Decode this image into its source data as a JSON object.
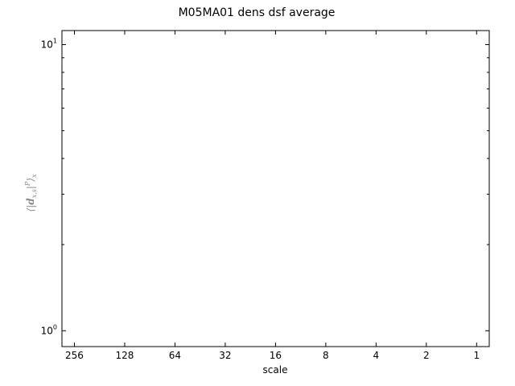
{
  "chart_data": {
    "type": "line",
    "title": "M05MA01 dens dsf average",
    "xlabel": "scale",
    "ylabel": "⟨|d_{x,s}|^P⟩_x",
    "x_scale": "log2",
    "x_reversed": true,
    "x_ticks": [
      256,
      128,
      64,
      32,
      16,
      8,
      4,
      2,
      1
    ],
    "x_tick_labels": [
      "256",
      "128",
      "64",
      "32",
      "16",
      "8",
      "4",
      "2",
      "1"
    ],
    "xlim": [
      304,
      0.84
    ],
    "y_scale": "log",
    "y_major_ticks": [
      {
        "value": 1,
        "base": "10",
        "exp": "0"
      },
      {
        "value": 10,
        "base": "10",
        "exp": "1"
      }
    ],
    "y_minor_ticks": [
      2,
      3,
      4,
      5,
      6,
      7,
      8,
      9
    ],
    "ylim": [
      0.88,
      11.2
    ],
    "grid": false,
    "series": []
  }
}
